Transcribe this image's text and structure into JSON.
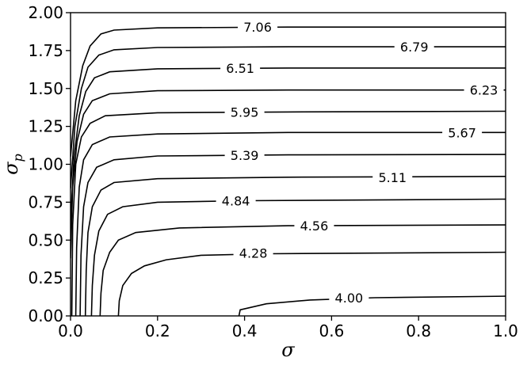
{
  "chart_data": {
    "type": "contour",
    "title": "",
    "xlabel": "σ",
    "ylabel": "σ",
    "ylabel_subscript": "p",
    "xlim": [
      0.0,
      1.0
    ],
    "ylim": [
      0.0,
      2.0
    ],
    "xticks": [
      "0.0",
      "0.2",
      "0.4",
      "0.6",
      "0.8",
      "1.0"
    ],
    "yticks": [
      "0.00",
      "0.25",
      "0.50",
      "0.75",
      "1.00",
      "1.25",
      "1.50",
      "1.75",
      "2.00"
    ],
    "grid": false,
    "levels": [
      {
        "label": "4.00",
        "label_at": [
          0.64,
          0.12
        ],
        "points": [
          [
            0.387,
            0.0
          ],
          [
            0.39,
            0.04
          ],
          [
            0.45,
            0.08
          ],
          [
            0.55,
            0.105
          ],
          [
            0.7,
            0.12
          ],
          [
            1.0,
            0.13
          ]
        ]
      },
      {
        "label": "4.28",
        "label_at": [
          0.42,
          0.415
        ],
        "points": [
          [
            0.11,
            0.0
          ],
          [
            0.112,
            0.1
          ],
          [
            0.12,
            0.2
          ],
          [
            0.14,
            0.28
          ],
          [
            0.17,
            0.33
          ],
          [
            0.22,
            0.37
          ],
          [
            0.3,
            0.4
          ],
          [
            0.45,
            0.41
          ],
          [
            1.0,
            0.42
          ]
        ]
      },
      {
        "label": "4.56",
        "label_at": [
          0.56,
          0.595
        ],
        "points": [
          [
            0.068,
            0.0
          ],
          [
            0.07,
            0.15
          ],
          [
            0.075,
            0.3
          ],
          [
            0.09,
            0.42
          ],
          [
            0.11,
            0.5
          ],
          [
            0.15,
            0.55
          ],
          [
            0.25,
            0.58
          ],
          [
            0.5,
            0.595
          ],
          [
            1.0,
            0.6
          ]
        ]
      },
      {
        "label": "4.84",
        "label_at": [
          0.38,
          0.76
        ],
        "points": [
          [
            0.048,
            0.0
          ],
          [
            0.05,
            0.2
          ],
          [
            0.055,
            0.4
          ],
          [
            0.065,
            0.56
          ],
          [
            0.085,
            0.67
          ],
          [
            0.12,
            0.72
          ],
          [
            0.2,
            0.75
          ],
          [
            0.4,
            0.76
          ],
          [
            1.0,
            0.77
          ]
        ]
      },
      {
        "label": "5.11",
        "label_at": [
          0.74,
          0.915
        ],
        "points": [
          [
            0.034,
            0.0
          ],
          [
            0.036,
            0.3
          ],
          [
            0.04,
            0.55
          ],
          [
            0.05,
            0.72
          ],
          [
            0.07,
            0.83
          ],
          [
            0.1,
            0.88
          ],
          [
            0.2,
            0.905
          ],
          [
            0.5,
            0.915
          ],
          [
            1.0,
            0.92
          ]
        ]
      },
      {
        "label": "5.39",
        "label_at": [
          0.4,
          1.06
        ],
        "points": [
          [
            0.022,
            0.0
          ],
          [
            0.024,
            0.4
          ],
          [
            0.03,
            0.72
          ],
          [
            0.04,
            0.88
          ],
          [
            0.06,
            0.98
          ],
          [
            0.1,
            1.03
          ],
          [
            0.2,
            1.055
          ],
          [
            0.5,
            1.062
          ],
          [
            1.0,
            1.065
          ]
        ]
      },
      {
        "label": "5.67",
        "label_at": [
          0.9,
          1.21
        ],
        "points": [
          [
            0.012,
            0.0
          ],
          [
            0.014,
            0.45
          ],
          [
            0.02,
            0.85
          ],
          [
            0.03,
            1.03
          ],
          [
            0.05,
            1.13
          ],
          [
            0.09,
            1.18
          ],
          [
            0.2,
            1.2
          ],
          [
            0.5,
            1.21
          ],
          [
            1.0,
            1.21
          ]
        ]
      },
      {
        "label": "5.95",
        "label_at": [
          0.4,
          1.345
        ],
        "points": [
          [
            0.003,
            0.0
          ],
          [
            0.005,
            0.6
          ],
          [
            0.012,
            1.0
          ],
          [
            0.025,
            1.18
          ],
          [
            0.045,
            1.27
          ],
          [
            0.08,
            1.32
          ],
          [
            0.2,
            1.34
          ],
          [
            0.5,
            1.345
          ],
          [
            1.0,
            1.35
          ]
        ]
      },
      {
        "label": "6.23",
        "label_at": [
          0.95,
          1.49
        ],
        "points": [
          [
            0.0,
            0.38
          ],
          [
            0.005,
            0.85
          ],
          [
            0.015,
            1.15
          ],
          [
            0.03,
            1.33
          ],
          [
            0.05,
            1.42
          ],
          [
            0.09,
            1.465
          ],
          [
            0.2,
            1.485
          ],
          [
            0.5,
            1.49
          ],
          [
            1.0,
            1.49
          ]
        ]
      },
      {
        "label": "6.51",
        "label_at": [
          0.39,
          1.635
        ],
        "points": [
          [
            0.0,
            0.62
          ],
          [
            0.008,
            1.05
          ],
          [
            0.02,
            1.32
          ],
          [
            0.035,
            1.48
          ],
          [
            0.055,
            1.57
          ],
          [
            0.09,
            1.61
          ],
          [
            0.2,
            1.63
          ],
          [
            0.5,
            1.635
          ],
          [
            1.0,
            1.635
          ]
        ]
      },
      {
        "label": "6.79",
        "label_at": [
          0.79,
          1.775
        ],
        "points": [
          [
            0.0,
            0.84
          ],
          [
            0.01,
            1.25
          ],
          [
            0.025,
            1.5
          ],
          [
            0.04,
            1.64
          ],
          [
            0.065,
            1.72
          ],
          [
            0.1,
            1.755
          ],
          [
            0.2,
            1.77
          ],
          [
            0.5,
            1.775
          ],
          [
            1.0,
            1.775
          ]
        ]
      },
      {
        "label": "7.06",
        "label_at": [
          0.43,
          1.905
        ],
        "points": [
          [
            0.0,
            1.05
          ],
          [
            0.012,
            1.42
          ],
          [
            0.028,
            1.65
          ],
          [
            0.045,
            1.78
          ],
          [
            0.07,
            1.86
          ],
          [
            0.1,
            1.885
          ],
          [
            0.2,
            1.9
          ],
          [
            0.5,
            1.905
          ],
          [
            1.0,
            1.905
          ]
        ]
      }
    ]
  }
}
